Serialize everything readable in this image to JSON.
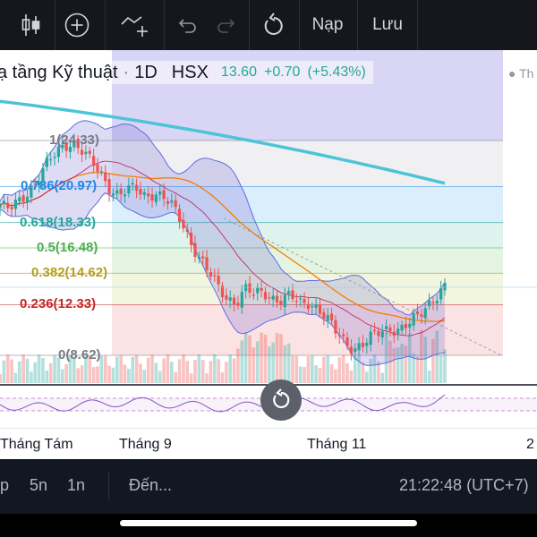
{
  "toolbar": {
    "deposit_label": "Nạp",
    "save_label": "Lưu"
  },
  "header": {
    "symbol_name": "ạ tầng Kỹ thuật",
    "separator": "·",
    "interval": "1D",
    "exchange": "HSX",
    "price": "13.60",
    "change": "+0.70",
    "change_pct": "(+5.43%)",
    "right_legend": "Th"
  },
  "fib_levels": [
    {
      "label": "1(24.33)",
      "color": "#787b86"
    },
    {
      "label": "0.786(20.97)",
      "color": "#1e88e5"
    },
    {
      "label": "0.618(18.33)",
      "color": "#26a69a"
    },
    {
      "label": "0.5(16.48)",
      "color": "#4caf50"
    },
    {
      "label": "0.382(14.62)",
      "color": "#b5a01b"
    },
    {
      "label": "0.236(12.33)",
      "color": "#c62828"
    },
    {
      "label": "0(8.62)",
      "color": "#787b86"
    }
  ],
  "time_axis": {
    "labels": [
      "Tháng Tám",
      "Tháng 9",
      "Tháng 11",
      "2"
    ]
  },
  "bottom_bar": {
    "range_partial": "p",
    "range_5y": "5n",
    "range_1y": "1n",
    "goto": "Đến...",
    "clock": "21:22:48 (UTC+7)"
  },
  "colors": {
    "up": "#26a69a",
    "down": "#ef5350",
    "bollinger_fill": "#6a5acd",
    "ma_long": "#4dc3d8",
    "ma_mid": "#f57c00"
  },
  "chart_data": {
    "type": "candlestick",
    "symbol": "ạ tầng Kỹ thuật",
    "interval": "1D",
    "exchange": "HSX",
    "last": 13.6,
    "change": 0.7,
    "change_pct": 5.43,
    "fib_retracement": {
      "high": 24.33,
      "low": 8.62,
      "levels": [
        1,
        0.786,
        0.618,
        0.5,
        0.382,
        0.236,
        0
      ]
    },
    "price_path": [
      19.6,
      19.2,
      19.8,
      20.6,
      21.4,
      22.4,
      23.2,
      24.0,
      24.3,
      23.6,
      22.7,
      22.0,
      21.0,
      20.4,
      20.6,
      20.8,
      20.3,
      20.6,
      20.1,
      19.4,
      18.4,
      17.0,
      15.7,
      14.6,
      13.6,
      12.9,
      12.5,
      13.4,
      13.0,
      13.3,
      12.9,
      12.6,
      12.9,
      12.4,
      12.6,
      12.1,
      11.2,
      10.3,
      9.6,
      9.2,
      9.4,
      9.9,
      10.4,
      10.7,
      10.5,
      10.8,
      11.4,
      12.3,
      13.0,
      13.6
    ],
    "ylim": [
      8.62,
      24.33
    ]
  }
}
